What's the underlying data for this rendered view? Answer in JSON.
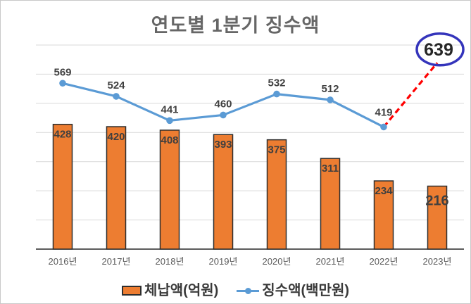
{
  "chart_data": {
    "type": "bar",
    "subtype": "combo-bar-line",
    "title": "연도별 1분기 징수액",
    "categories": [
      "2016년",
      "2017년",
      "2018년",
      "2019년",
      "2020년",
      "2021년",
      "2022년",
      "2023년"
    ],
    "series": [
      {
        "name": "체납액(억원)",
        "type": "bar",
        "color": "#ED7D31",
        "border_color": "#2e2e2e",
        "values": [
          428,
          420,
          408,
          393,
          375,
          311,
          234,
          216
        ]
      },
      {
        "name": "징수액(백만원)",
        "type": "line",
        "color": "#5B9BD5",
        "values": [
          569,
          524,
          441,
          460,
          532,
          512,
          419,
          null
        ]
      }
    ],
    "projection": {
      "category": "2023년",
      "value": 639,
      "line_color": "#FF0000",
      "line_style": "dashed",
      "circle_color": "#3434bb",
      "note": "projected collection value highlighted with circle"
    },
    "xlabel": "",
    "ylabel": "",
    "ylim": [
      0,
      700
    ],
    "grid_interval": 100,
    "grid": true,
    "y_axis_labels_visible": false,
    "legend_position": "bottom",
    "label_color": "#3f3f3f",
    "axis_color": "#262626",
    "gridline_color": "#d9d9d9",
    "tick_label_color": "#595959"
  }
}
